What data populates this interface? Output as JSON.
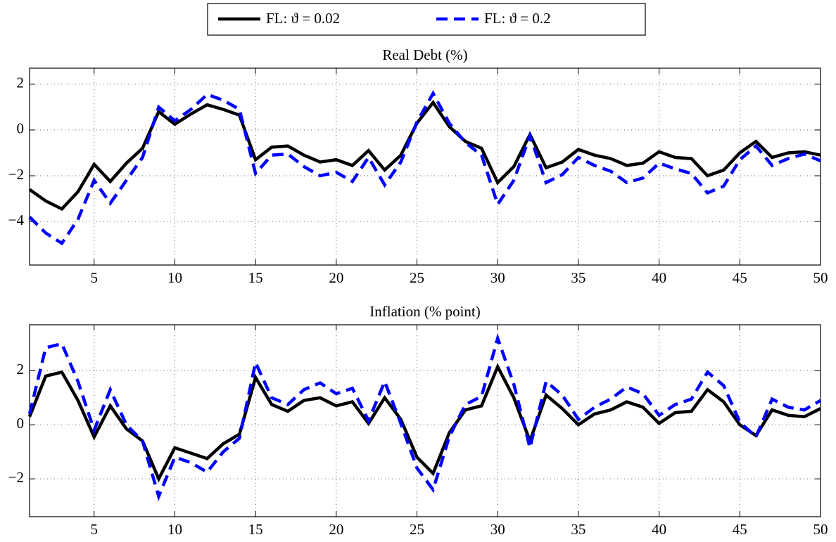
{
  "chart_data": [
    {
      "type": "line",
      "title": "Real Debt (%)",
      "x": [
        1,
        2,
        3,
        4,
        5,
        6,
        7,
        8,
        9,
        10,
        11,
        12,
        13,
        14,
        15,
        16,
        17,
        18,
        19,
        20,
        21,
        22,
        23,
        24,
        25,
        26,
        27,
        28,
        29,
        30,
        31,
        32,
        33,
        34,
        35,
        36,
        37,
        38,
        39,
        40,
        41,
        42,
        43,
        44,
        45,
        46,
        47,
        48,
        49,
        50
      ],
      "xlim": [
        1,
        50
      ],
      "xticks": [
        5,
        10,
        15,
        20,
        25,
        30,
        35,
        40,
        45,
        50
      ],
      "ylim": [
        -5.9,
        2.7
      ],
      "yticks": [
        {
          "value": -4,
          "label": "−4"
        },
        {
          "value": -2,
          "label": "−2"
        },
        0,
        2
      ],
      "grid": true,
      "series": [
        {
          "name": "FL: ϑ = 0.02",
          "color": "#000000",
          "dash": "solid",
          "values": [
            -2.6,
            -3.1,
            -3.45,
            -2.7,
            -1.5,
            -2.25,
            -1.45,
            -0.8,
            0.8,
            0.25,
            0.7,
            1.1,
            0.9,
            0.65,
            -1.3,
            -0.75,
            -0.7,
            -1.1,
            -1.4,
            -1.3,
            -1.55,
            -0.9,
            -1.75,
            -1.1,
            0.3,
            1.2,
            0.15,
            -0.5,
            -0.8,
            -2.3,
            -1.6,
            -0.2,
            -1.65,
            -1.4,
            -0.85,
            -1.1,
            -1.25,
            -1.55,
            -1.45,
            -0.95,
            -1.2,
            -1.25,
            -2.0,
            -1.75,
            -1.0,
            -0.5,
            -1.2,
            -1.0,
            -0.95,
            -1.1
          ]
        },
        {
          "name": "FL: ϑ = 0.2",
          "color": "#0000ff",
          "dash": "dashed",
          "values": [
            -3.8,
            -4.5,
            -4.95,
            -3.9,
            -2.2,
            -3.2,
            -2.2,
            -1.2,
            1.0,
            0.4,
            0.9,
            1.55,
            1.3,
            0.9,
            -1.9,
            -1.1,
            -1.05,
            -1.6,
            -2.0,
            -1.85,
            -2.25,
            -1.2,
            -2.4,
            -1.4,
            0.35,
            1.6,
            0.3,
            -0.55,
            -1.1,
            -3.25,
            -2.2,
            -0.25,
            -2.3,
            -1.95,
            -1.2,
            -1.55,
            -1.8,
            -2.3,
            -2.1,
            -1.45,
            -1.7,
            -1.9,
            -2.75,
            -2.45,
            -1.3,
            -0.7,
            -1.55,
            -1.25,
            -1.05,
            -1.35
          ]
        }
      ]
    },
    {
      "type": "line",
      "title": "Inflation (% point)",
      "x": [
        1,
        2,
        3,
        4,
        5,
        6,
        7,
        8,
        9,
        10,
        11,
        12,
        13,
        14,
        15,
        16,
        17,
        18,
        19,
        20,
        21,
        22,
        23,
        24,
        25,
        26,
        27,
        28,
        29,
        30,
        31,
        32,
        33,
        34,
        35,
        36,
        37,
        38,
        39,
        40,
        41,
        42,
        43,
        44,
        45,
        46,
        47,
        48,
        49,
        50
      ],
      "xlim": [
        1,
        50
      ],
      "xticks": [
        5,
        10,
        15,
        20,
        25,
        30,
        35,
        40,
        45,
        50
      ],
      "ylim": [
        -3.4,
        3.7
      ],
      "yticks": [
        {
          "value": -2,
          "label": "−2"
        },
        0,
        2
      ],
      "grid": true,
      "series": [
        {
          "color": "#000000",
          "dash": "solid",
          "values": [
            0.3,
            1.8,
            1.95,
            0.9,
            -0.45,
            0.7,
            -0.15,
            -0.6,
            -2.0,
            -0.85,
            -1.05,
            -1.25,
            -0.7,
            -0.35,
            1.75,
            0.75,
            0.5,
            0.9,
            1.0,
            0.7,
            0.85,
            0.05,
            1.0,
            0.2,
            -1.2,
            -1.8,
            -0.3,
            0.55,
            0.7,
            2.15,
            1.0,
            -0.6,
            1.1,
            0.6,
            0.0,
            0.4,
            0.55,
            0.85,
            0.65,
            0.05,
            0.45,
            0.5,
            1.3,
            0.85,
            0.0,
            -0.4,
            0.55,
            0.35,
            0.3,
            0.6
          ]
        },
        {
          "color": "#0000ff",
          "dash": "dashed",
          "values": [
            0.4,
            2.85,
            3.0,
            1.6,
            -0.2,
            1.3,
            0.0,
            -0.6,
            -2.65,
            -1.2,
            -1.4,
            -1.75,
            -1.0,
            -0.5,
            2.3,
            1.0,
            0.75,
            1.3,
            1.55,
            1.15,
            1.35,
            0.15,
            1.6,
            0.05,
            -1.6,
            -2.4,
            -0.45,
            0.75,
            1.05,
            3.2,
            1.5,
            -0.85,
            1.6,
            1.1,
            0.2,
            0.65,
            0.95,
            1.4,
            1.15,
            0.35,
            0.75,
            0.95,
            1.95,
            1.45,
            0.1,
            -0.45,
            0.95,
            0.65,
            0.55,
            0.9
          ]
        }
      ]
    }
  ]
}
